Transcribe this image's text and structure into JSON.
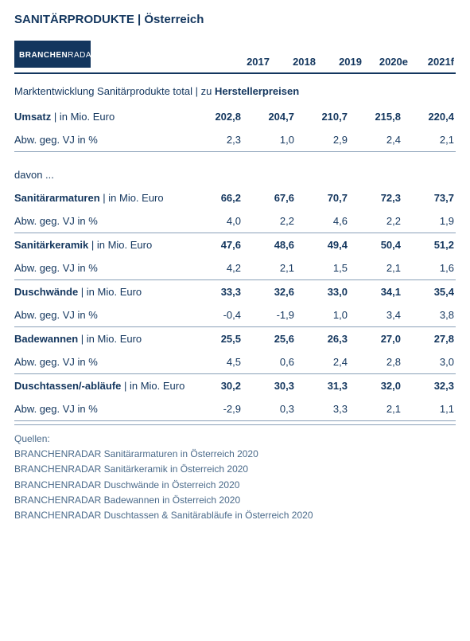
{
  "title_part1": "SANITÄRPRODUKTE",
  "title_sep": " | ",
  "title_part2": "Österreich",
  "logo_text1": "BRANCHEN",
  "logo_text2": "RADAR",
  "years": [
    "2017",
    "2018",
    "2019",
    "2020e",
    "2021f"
  ],
  "subtitle_part1": "Marktentwicklung Sanitärprodukte total | zu ",
  "subtitle_bold": "Herstellerpreisen",
  "davon": "davon ...",
  "groups": [
    {
      "name": "Umsatz",
      "unit": " | in Mio. Euro",
      "vals": [
        "202,8",
        "204,7",
        "210,7",
        "215,8",
        "220,4"
      ],
      "dev_label": "Abw. geg. VJ in %",
      "dev": [
        "2,3",
        "1,0",
        "2,9",
        "2,4",
        "2,1"
      ]
    },
    {
      "name": "Sanitärarmaturen",
      "unit": " | in Mio. Euro",
      "vals": [
        "66,2",
        "67,6",
        "70,7",
        "72,3",
        "73,7"
      ],
      "dev_label": "Abw. geg. VJ in %",
      "dev": [
        "4,0",
        "2,2",
        "4,6",
        "2,2",
        "1,9"
      ]
    },
    {
      "name": "Sanitärkeramik",
      "unit": " | in Mio. Euro",
      "vals": [
        "47,6",
        "48,6",
        "49,4",
        "50,4",
        "51,2"
      ],
      "dev_label": "Abw. geg. VJ in %",
      "dev": [
        "4,2",
        "2,1",
        "1,5",
        "2,1",
        "1,6"
      ]
    },
    {
      "name": "Duschwände",
      "unit": " | in Mio. Euro",
      "vals": [
        "33,3",
        "32,6",
        "33,0",
        "34,1",
        "35,4"
      ],
      "dev_label": "Abw. geg. VJ in %",
      "dev": [
        "-0,4",
        "-1,9",
        "1,0",
        "3,4",
        "3,8"
      ]
    },
    {
      "name": "Badewannen",
      "unit": " | in Mio. Euro",
      "vals": [
        "25,5",
        "25,6",
        "26,3",
        "27,0",
        "27,8"
      ],
      "dev_label": "Abw. geg. VJ in %",
      "dev": [
        "4,5",
        "0,6",
        "2,4",
        "2,8",
        "3,0"
      ]
    },
    {
      "name": "Duschtassen/-abläufe",
      "unit": " | in Mio. Euro",
      "vals": [
        "30,2",
        "30,3",
        "31,3",
        "32,0",
        "32,3"
      ],
      "dev_label": "Abw. geg. VJ in %",
      "dev": [
        "-2,9",
        "0,3",
        "3,3",
        "2,1",
        "1,1"
      ]
    }
  ],
  "sources_label": "Quellen:",
  "sources": [
    "BRANCHENRADAR Sanitärarmaturen in Österreich 2020",
    "BRANCHENRADAR Sanitärkeramik in Österreich 2020",
    "BRANCHENRADAR Duschwände in Österreich 2020",
    "BRANCHENRADAR Badewannen in Österreich 2020",
    "BRANCHENRADAR Duschtassen & Sanitärabläufe in Österreich 2020"
  ],
  "colors": {
    "primary": "#13365e",
    "line": "#8aa0b8"
  }
}
